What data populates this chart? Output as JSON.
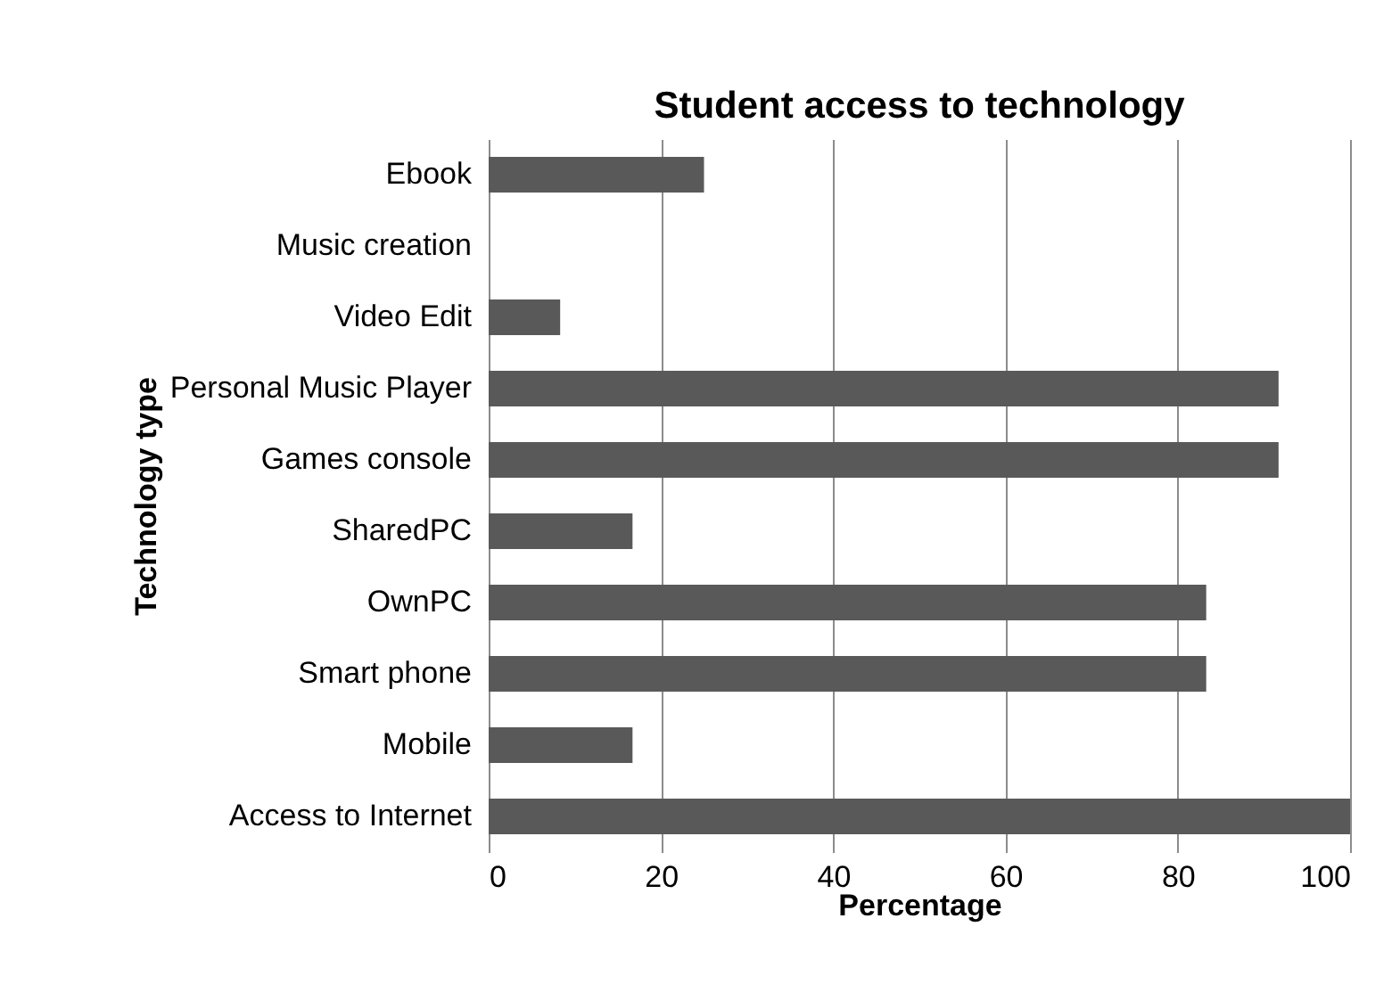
{
  "chart_data": {
    "type": "bar",
    "orientation": "horizontal",
    "title": "Student access to technology",
    "xlabel": "Percentage",
    "ylabel": "Technology type",
    "categories": [
      "Ebook",
      "Music creation",
      "Video Edit",
      "Personal Music Player",
      "Games console",
      "SharedPC",
      "OwnPC",
      "Smart phone",
      "Mobile",
      "Access to Internet"
    ],
    "values": [
      25,
      0,
      8.3,
      91.7,
      91.7,
      16.7,
      83.3,
      83.3,
      16.7,
      100
    ],
    "color": "#595959",
    "xlim": [
      0,
      100
    ],
    "xticks": [
      0,
      20,
      40,
      60,
      80,
      100
    ],
    "grid": "x"
  }
}
